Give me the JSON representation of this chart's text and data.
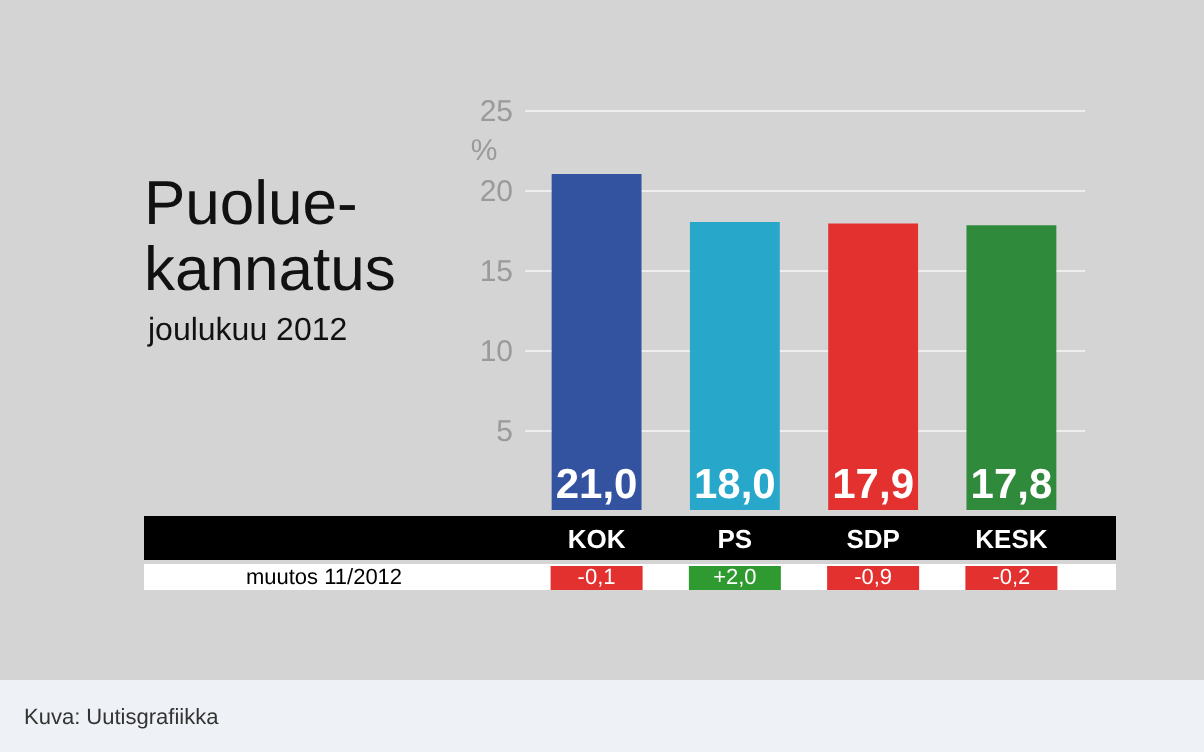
{
  "chart_data": {
    "type": "bar",
    "title": "Puolue-\nkannatus",
    "subtitle": "joulukuu 2012",
    "ylabel": "%",
    "categories": [
      "KOK",
      "PS",
      "SDP",
      "KESK"
    ],
    "values": [
      21.0,
      18.0,
      17.9,
      17.8
    ],
    "colors": [
      "#3352a0",
      "#27a7c9",
      "#e2312f",
      "#2f8a3b"
    ],
    "value_labels": [
      "21,0",
      "18,0",
      "17,9",
      "17,8"
    ],
    "ylim": [
      0,
      25
    ],
    "yticks": [
      5,
      10,
      15,
      20,
      25
    ],
    "grid": "y",
    "annotations": [
      "muutos 11/2012",
      "-0,1",
      "+2,0",
      "-0,9",
      "-0,2",
      "Kuva: Uutisgrafiikka"
    ]
  }
}
